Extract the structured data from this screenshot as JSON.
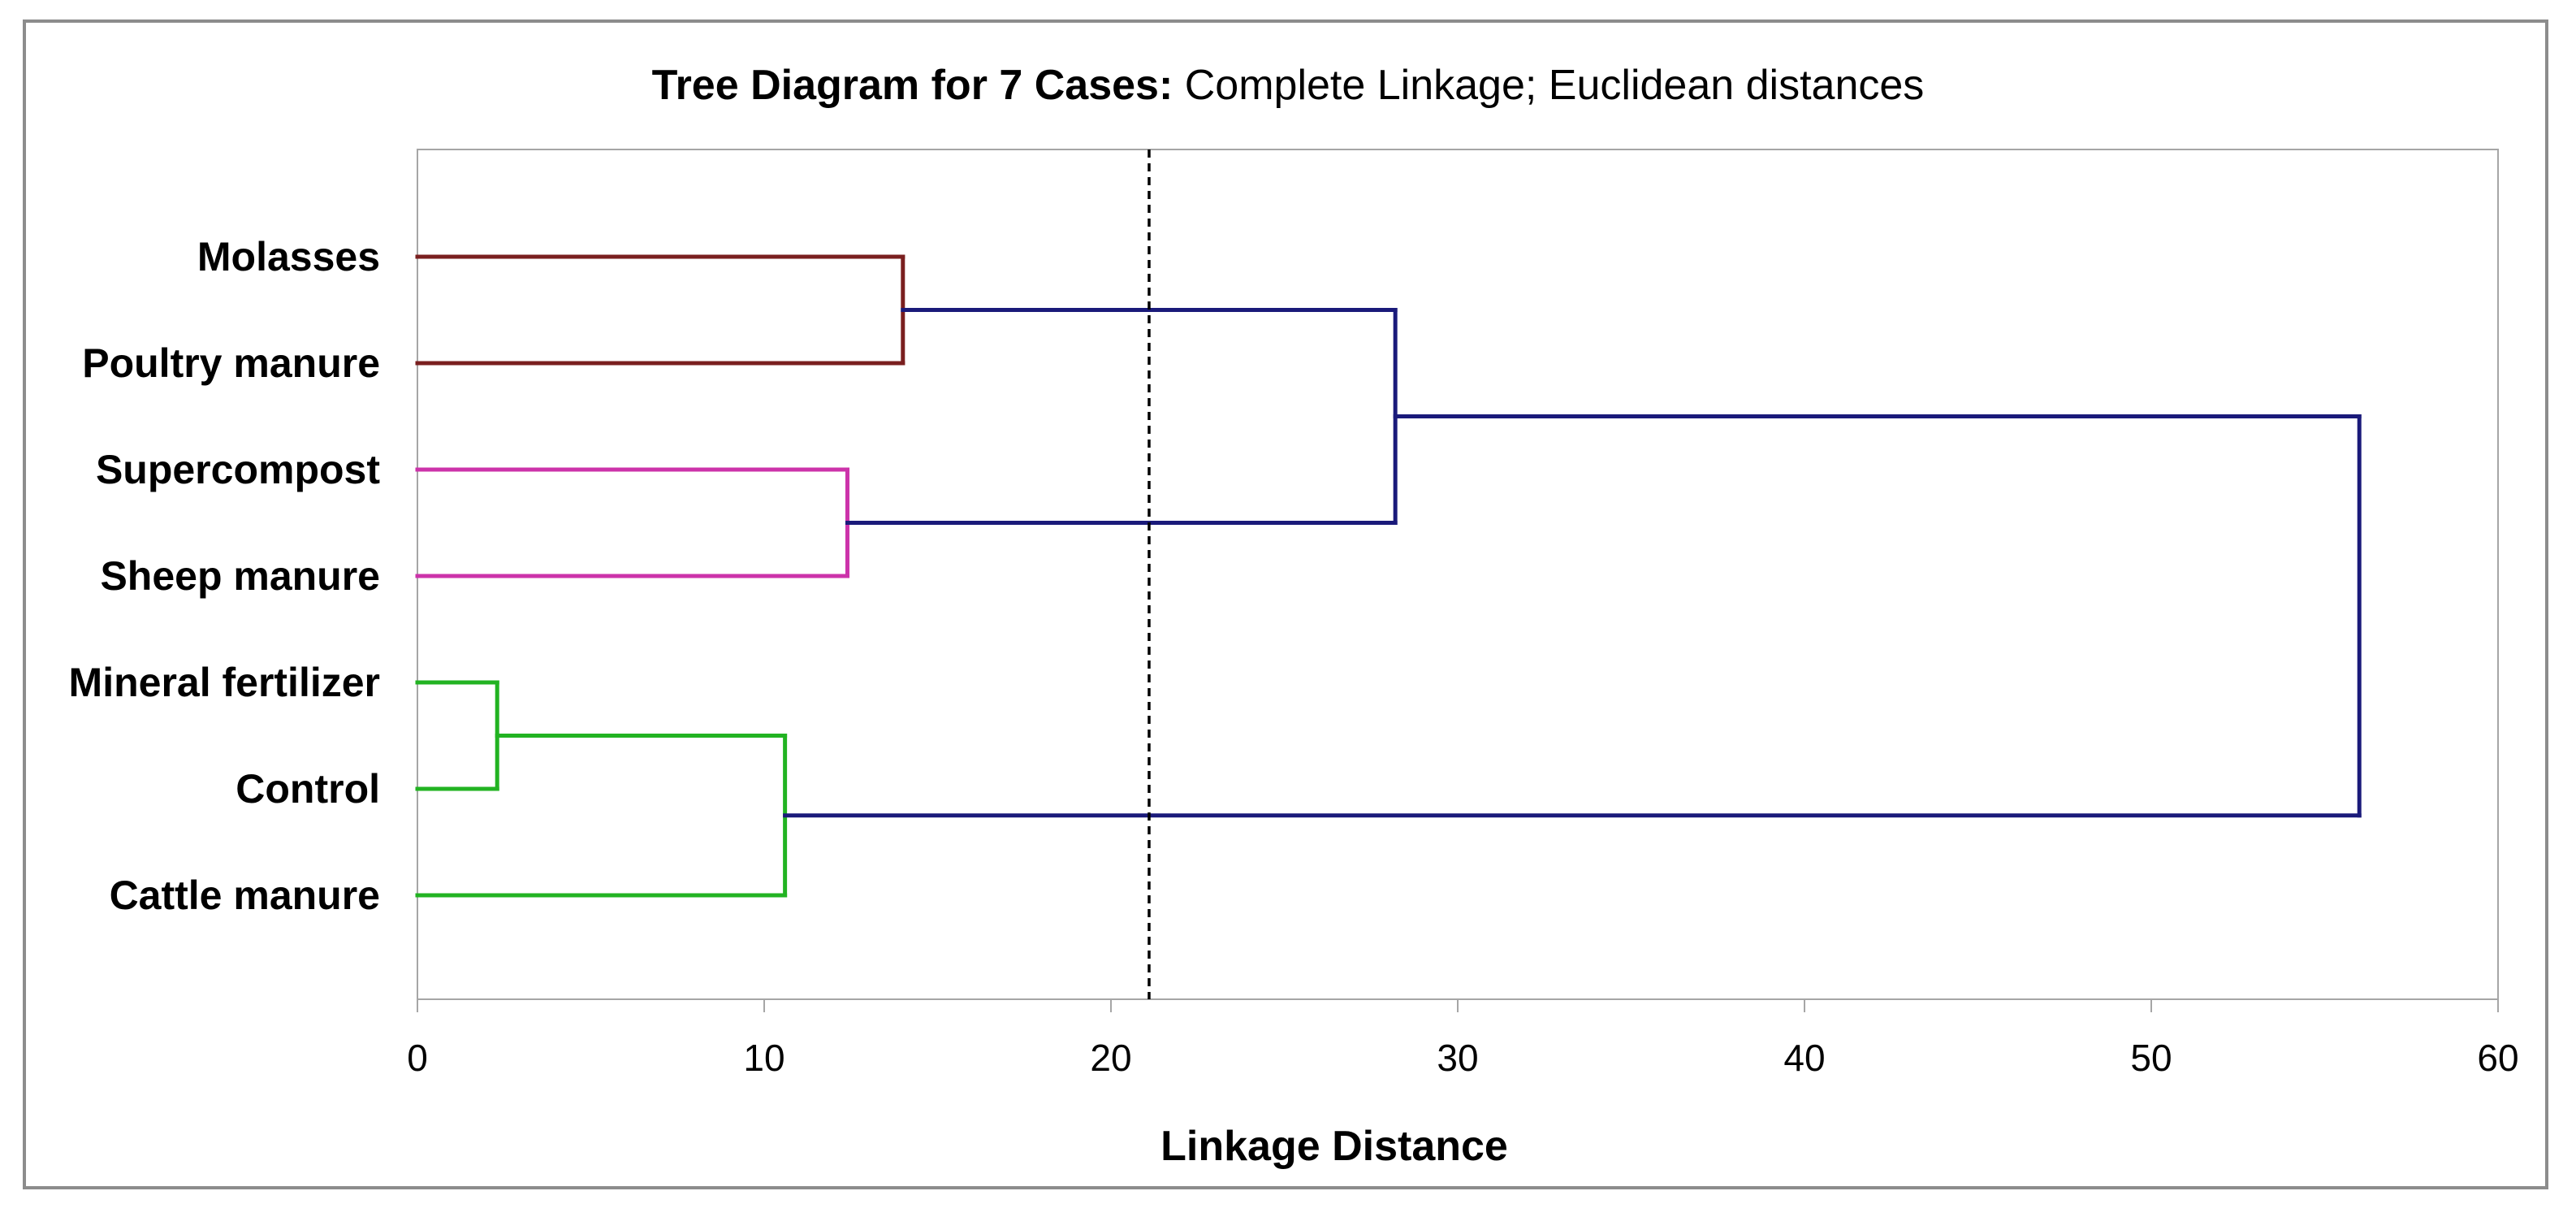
{
  "chart_data": {
    "type": "dendrogram",
    "title_bold": "Tree Diagram for 7 Cases:",
    "title_rest": " Complete Linkage; Euclidean distances",
    "xlabel": "Linkage Distance",
    "ylabel": "",
    "xlim": [
      0,
      60
    ],
    "xticks": [
      0,
      10,
      20,
      30,
      40,
      50,
      60
    ],
    "grid": false,
    "cutoff_line": {
      "x": 21.1,
      "style": "dashed"
    },
    "leaves": [
      "Molasses",
      "Poultry manure",
      "Supercompost",
      "Sheep manure",
      "Mineral fertilizer",
      "Control",
      "Cattle manure"
    ],
    "merges": [
      {
        "id": "m1",
        "children": [
          "Mineral fertilizer",
          "Control"
        ],
        "height": 2.3,
        "color": "#22b322"
      },
      {
        "id": "m2",
        "children": [
          "m1",
          "Cattle manure"
        ],
        "height": 10.6,
        "color": "#22b322"
      },
      {
        "id": "m3",
        "children": [
          "Supercompost",
          "Sheep manure"
        ],
        "height": 12.4,
        "color": "#cc33aa"
      },
      {
        "id": "m4",
        "children": [
          "Molasses",
          "Poultry manure"
        ],
        "height": 14.0,
        "color": "#7a1f1f"
      },
      {
        "id": "m5",
        "children": [
          "m4",
          "m3"
        ],
        "height": 28.2,
        "color": "#1a1a7a"
      },
      {
        "id": "m6",
        "children": [
          "m5",
          "m2"
        ],
        "height": 56.0,
        "color": "#1a1a7a"
      }
    ],
    "leaf_colors": {
      "Molasses": "#7a1f1f",
      "Poultry manure": "#7a1f1f",
      "Supercompost": "#cc33aa",
      "Sheep manure": "#cc33aa",
      "Mineral fertilizer": "#22b322",
      "Control": "#22b322",
      "Cattle manure": "#22b322"
    },
    "axis_color": "#a6a6a6"
  }
}
